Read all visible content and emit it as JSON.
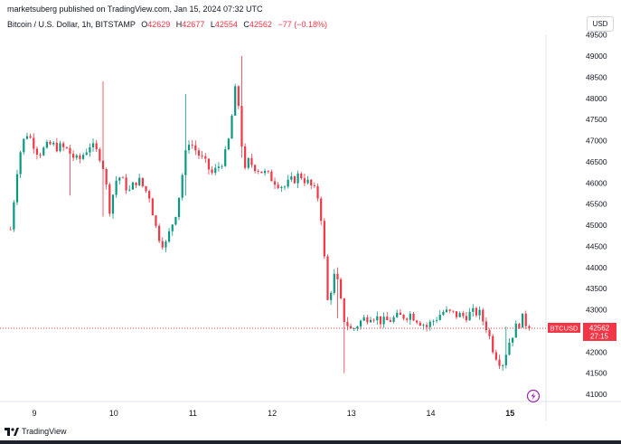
{
  "header": {
    "publisher": "marketsuberg published on TradingView.com, Jan 15, 2024 07:32 UTC"
  },
  "legend": {
    "symbol": "Bitcoin / U.S. Dollar, 1h, BITSTAMP",
    "o_label": "O",
    "o_value": "42629",
    "h_label": "H",
    "h_value": "42677",
    "l_label": "L",
    "l_value": "42554",
    "c_label": "C",
    "c_value": "42562",
    "change": "−77 (−0.18%)"
  },
  "currency_button": "USD",
  "brand": {
    "name": "TradingView"
  },
  "colors": {
    "up": "#089981",
    "down": "#f23645",
    "price_tag": "#f23645",
    "accent": "#9c27b0"
  },
  "chart_data": {
    "type": "candlestick",
    "timeframe": "1h",
    "ylim": [
      41000,
      49500
    ],
    "y_ticks": [
      "41000",
      "41500",
      "42000",
      "42500",
      "43000",
      "43500",
      "44000",
      "44500",
      "45000",
      "45500",
      "46000",
      "46500",
      "47000",
      "47500",
      "48000",
      "48500",
      "49000",
      "49500"
    ],
    "x_ticks": [
      {
        "label": "9",
        "day": 9
      },
      {
        "label": "10",
        "day": 10
      },
      {
        "label": "11",
        "day": 11
      },
      {
        "label": "12",
        "day": 12
      },
      {
        "label": "13",
        "day": 13
      },
      {
        "label": "14",
        "day": 14
      },
      {
        "label": "15",
        "day": 15,
        "bold": true
      }
    ],
    "price_line": 42562,
    "price_tag": {
      "symbol": "BTCUSD",
      "value": "42562",
      "countdown": "27:15"
    },
    "anchors": [
      [
        8.7,
        44900
      ],
      [
        8.8,
        46600
      ],
      [
        8.9,
        47200
      ],
      [
        9.0,
        46900
      ],
      [
        9.05,
        46700
      ],
      [
        9.2,
        46900
      ],
      [
        9.4,
        46800
      ],
      [
        9.55,
        46500
      ],
      [
        9.7,
        46900
      ],
      [
        9.85,
        46600
      ],
      [
        9.95,
        45400
      ],
      [
        10.05,
        46200
      ],
      [
        10.2,
        45800
      ],
      [
        10.3,
        46100
      ],
      [
        10.45,
        45700
      ],
      [
        10.55,
        44800
      ],
      [
        10.65,
        44500
      ],
      [
        10.8,
        45400
      ],
      [
        10.9,
        46600
      ],
      [
        10.95,
        47000
      ],
      [
        11.1,
        46600
      ],
      [
        11.25,
        46200
      ],
      [
        11.4,
        46600
      ],
      [
        11.45,
        47000
      ],
      [
        11.55,
        48400
      ],
      [
        11.65,
        46200
      ],
      [
        11.7,
        46500
      ],
      [
        11.85,
        46300
      ],
      [
        12.0,
        46100
      ],
      [
        12.15,
        45900
      ],
      [
        12.35,
        46200
      ],
      [
        12.5,
        45900
      ],
      [
        12.6,
        45600
      ],
      [
        12.7,
        43200
      ],
      [
        12.8,
        43900
      ],
      [
        12.9,
        42800
      ],
      [
        13.0,
        42500
      ],
      [
        13.1,
        42700
      ],
      [
        13.25,
        42900
      ],
      [
        13.4,
        42700
      ],
      [
        13.55,
        42800
      ],
      [
        13.75,
        42900
      ],
      [
        13.95,
        42600
      ],
      [
        14.15,
        42950
      ],
      [
        14.4,
        42850
      ],
      [
        14.6,
        42950
      ],
      [
        14.7,
        42600
      ],
      [
        14.8,
        42000
      ],
      [
        14.9,
        41700
      ],
      [
        15.0,
        42300
      ],
      [
        15.05,
        42500
      ],
      [
        15.15,
        42800
      ],
      [
        15.25,
        42562
      ]
    ],
    "spikes": [
      {
        "day": 9.45,
        "high": 46900,
        "low": 45700
      },
      {
        "day": 9.88,
        "high": 48400,
        "low": 45200
      },
      {
        "day": 10.9,
        "high": 48100,
        "low": 45700
      },
      {
        "day": 11.6,
        "high": 49000,
        "low": 46600
      },
      {
        "day": 12.92,
        "high": 43100,
        "low": 41500
      },
      {
        "day": 12.82,
        "high": 44000,
        "low": 42800
      },
      {
        "day": 14.95,
        "high": 42600,
        "low": 41700
      }
    ]
  }
}
